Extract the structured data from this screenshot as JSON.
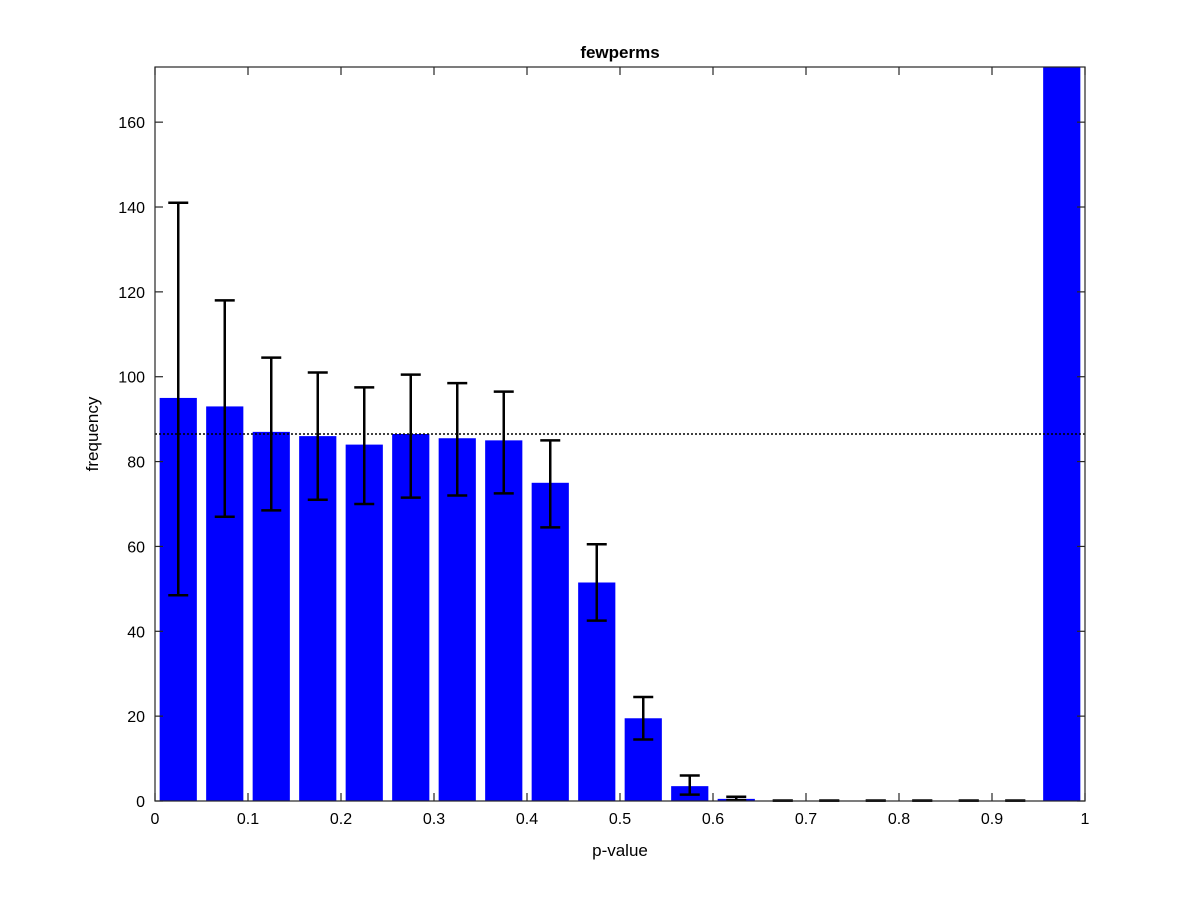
{
  "chart_data": {
    "type": "bar",
    "title": "fewperms",
    "xlabel": "p-value",
    "ylabel": "frequency",
    "xlim": [
      0,
      1
    ],
    "ylim": [
      0,
      173
    ],
    "x_ticks": [
      "0",
      "0.1",
      "0.2",
      "0.3",
      "0.4",
      "0.5",
      "0.6",
      "0.7",
      "0.8",
      "0.9",
      "1"
    ],
    "y_ticks": [
      "0",
      "20",
      "40",
      "60",
      "80",
      "100",
      "120",
      "140",
      "160"
    ],
    "bin_width": 0.05,
    "bin_centers": [
      0.025,
      0.075,
      0.125,
      0.175,
      0.225,
      0.275,
      0.325,
      0.375,
      0.425,
      0.475,
      0.525,
      0.575,
      0.625,
      0.675,
      0.725,
      0.775,
      0.825,
      0.875,
      0.925,
      0.975
    ],
    "values": [
      95,
      93,
      87,
      86,
      84,
      86.5,
      85.5,
      85,
      75,
      51.5,
      19.5,
      3.5,
      0.5,
      0.1,
      0.1,
      0.1,
      0.1,
      0.1,
      0.1,
      173
    ],
    "error_low": [
      48.5,
      67,
      68.5,
      71,
      70,
      71.5,
      72,
      72.5,
      64.5,
      42.5,
      14.5,
      1.5,
      0.2,
      0.1,
      0.1,
      0.1,
      0.1,
      0.1,
      0.1,
      null
    ],
    "error_high": [
      141,
      118,
      104.5,
      101,
      97.5,
      100.5,
      98.5,
      96.5,
      85,
      60.5,
      24.5,
      6,
      1,
      0.1,
      0.1,
      0.1,
      0.1,
      0.1,
      0.1,
      null
    ],
    "reference_line": 86.5,
    "bar_color": "#0000ff",
    "error_color": "#000000",
    "grid": false
  }
}
